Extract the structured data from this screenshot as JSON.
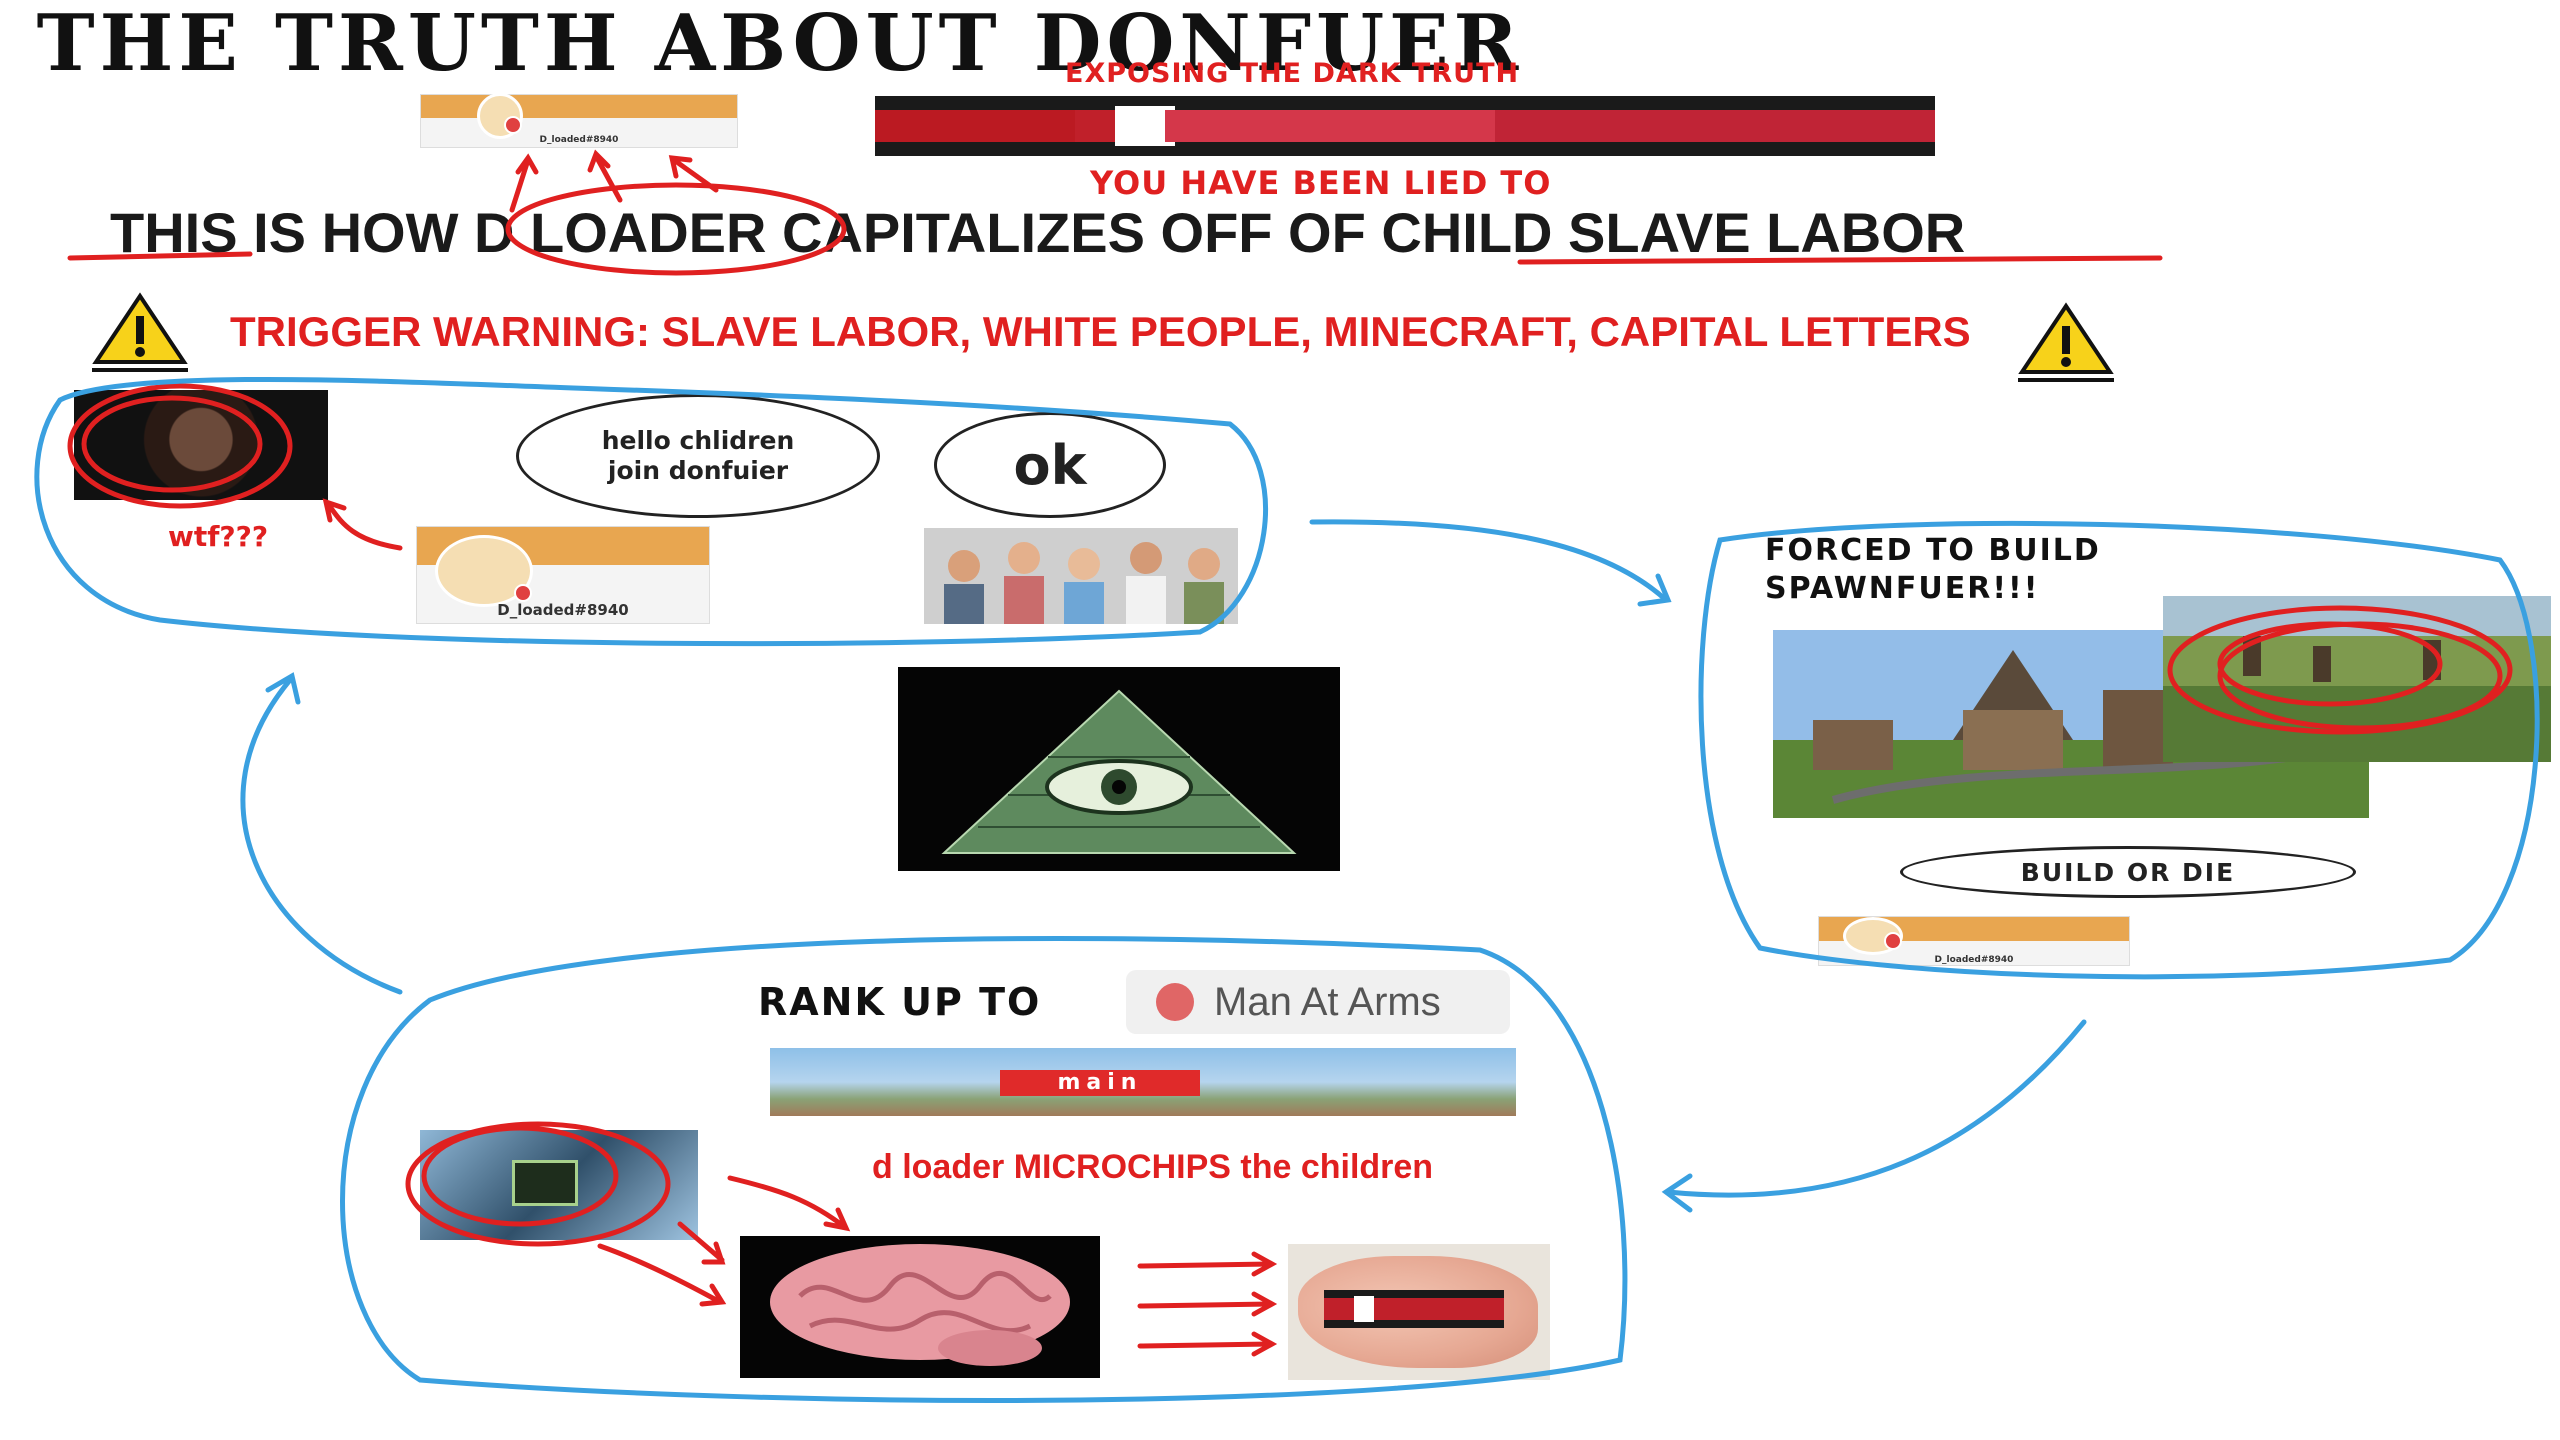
{
  "header": {
    "title": "THE TRUTH ABOUT DONFUER",
    "subtitle": "EXPOSING THE DARK TRUTH",
    "lied": "YOU HAVE BEEN LIED TO",
    "headline": "THIS IS HOW D LOADER CAPITALIZES OFF OF CHILD SLAVE LABOR",
    "trigger_warning": "TRIGGER WARNING: SLAVE LABOR, WHITE PEOPLE, MINECRAFT, CAPITAL LETTERS"
  },
  "profile_card": {
    "username": "D_loaded#8940"
  },
  "recruit_panel": {
    "bubble_text": "hello chlidren join donfuier",
    "reply": "ok",
    "reaction": "wtf???"
  },
  "build_panel": {
    "caption": "FORCED TO BUILD SPAWNFUER!!!",
    "bubble_text": "BUILD OR DIE"
  },
  "rank_panel": {
    "label": "RANK UP TO",
    "rank_name": "Man At Arms",
    "server_banner": "main",
    "microchip_text": "d loader MICROCHIPS the children"
  },
  "colors": {
    "accent_red": "#e02020",
    "cycle_blue": "#3aa0e0",
    "card_orange": "#e8a650"
  },
  "icons": [
    "warning-icon",
    "illuminati-eye-icon",
    "microchip-icon"
  ]
}
